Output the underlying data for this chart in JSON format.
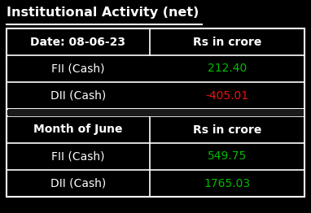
{
  "title": "Institutional Activity (net)",
  "background_color": "#000000",
  "title_color": "#ffffff",
  "title_fontsize": 11.5,
  "table_border_color": "#ffffff",
  "section1_header_col1": "Date: 08-06-23",
  "section1_header_col2": "Rs in crore",
  "section1_row1_label": "FII (Cash)",
  "section1_row1_value": "212.40",
  "section1_row1_value_color": "#00bb00",
  "section1_row2_label": "DII (Cash)",
  "section1_row2_value": "-405.01",
  "section1_row2_value_color": "#ee1111",
  "section2_header_col1": "Month of June",
  "section2_header_col2": "Rs in crore",
  "section2_row1_label": "FII (Cash)",
  "section2_row1_value": "549.75",
  "section2_row1_value_color": "#00bb00",
  "section2_row2_label": "DII (Cash)",
  "section2_row2_value": "1765.03",
  "section2_row2_value_color": "#00bb00",
  "header_color": "#ffffff",
  "label_color": "#ffffff",
  "header_fontsize": 10,
  "data_fontsize": 10,
  "fig_width": 3.82,
  "fig_height": 2.62,
  "dpi": 100
}
